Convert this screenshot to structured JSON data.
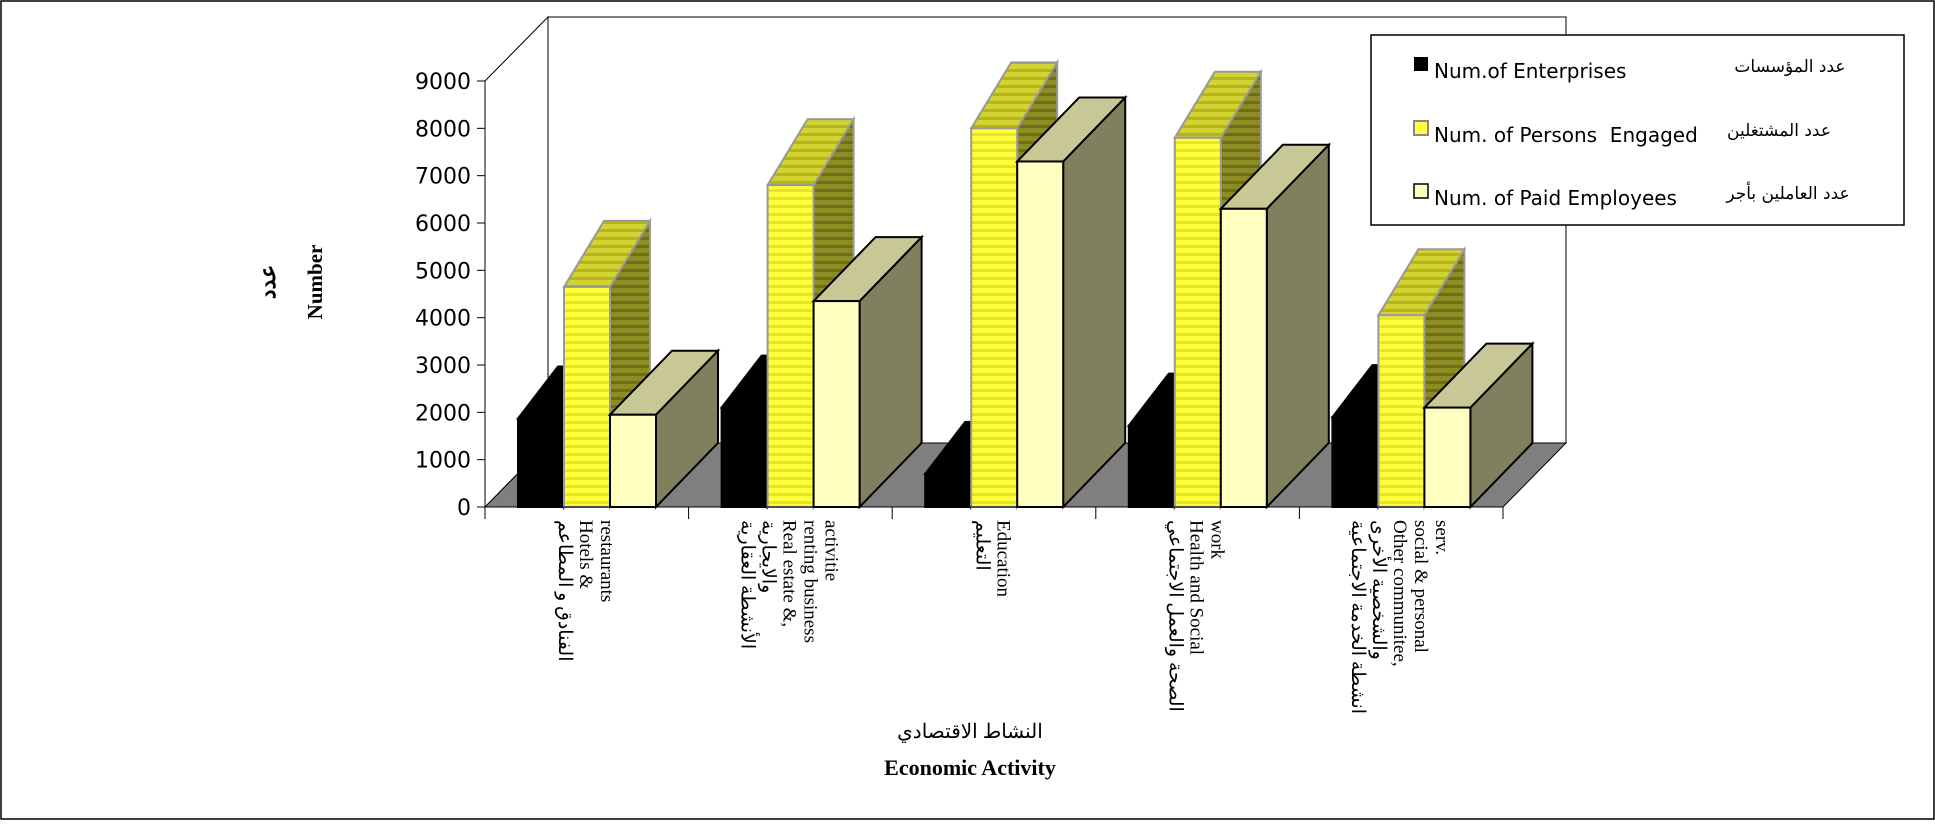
{
  "chart_data": {
    "type": "bar",
    "ylabel_ar": "عدد",
    "ylabel_en": "Number",
    "xlabel_ar": "النشاط الاقتصادي",
    "xlabel_en": "Economic Activity",
    "ylim": [
      0,
      9000
    ],
    "yticks": [
      0,
      1000,
      2000,
      3000,
      4000,
      5000,
      6000,
      7000,
      8000,
      9000
    ],
    "legend_position": "top-right",
    "grid": false,
    "categories": [
      {
        "lines": [
          "الفنادق و المطاعم",
          "Hotels &",
          "restaurants"
        ]
      },
      {
        "lines": [
          "الأنشطة العقارية",
          "والايجارية",
          "Real estate &,",
          "renting business",
          "activitie"
        ]
      },
      {
        "lines": [
          "التعليم",
          "Education"
        ]
      },
      {
        "lines": [
          "الصحة والعمل الاجتماعي",
          "Health and Social",
          "work"
        ]
      },
      {
        "lines": [
          "انشطة الخدمة الاجتماعية",
          "والشخصية الأخرى",
          "Other communitee,",
          "social & personal",
          "serv."
        ]
      }
    ],
    "series": [
      {
        "name": "Num.of Enterprises",
        "name_ar": "عدد  المؤسسات",
        "values": [
          1870,
          2100,
          700,
          1720,
          1900
        ],
        "color": "#000000"
      },
      {
        "name": "Num. of Persons  Engaged",
        "name_ar": "عدد المشتغلين",
        "values": [
          4650,
          6800,
          8000,
          7800,
          4050
        ],
        "color": "#ffff44"
      },
      {
        "name": "Num. of Paid Employees",
        "name_ar": "عدد العاملين بأجر",
        "values": [
          1950,
          4350,
          7300,
          6300,
          2100
        ],
        "color": "#ffffc0"
      }
    ]
  }
}
